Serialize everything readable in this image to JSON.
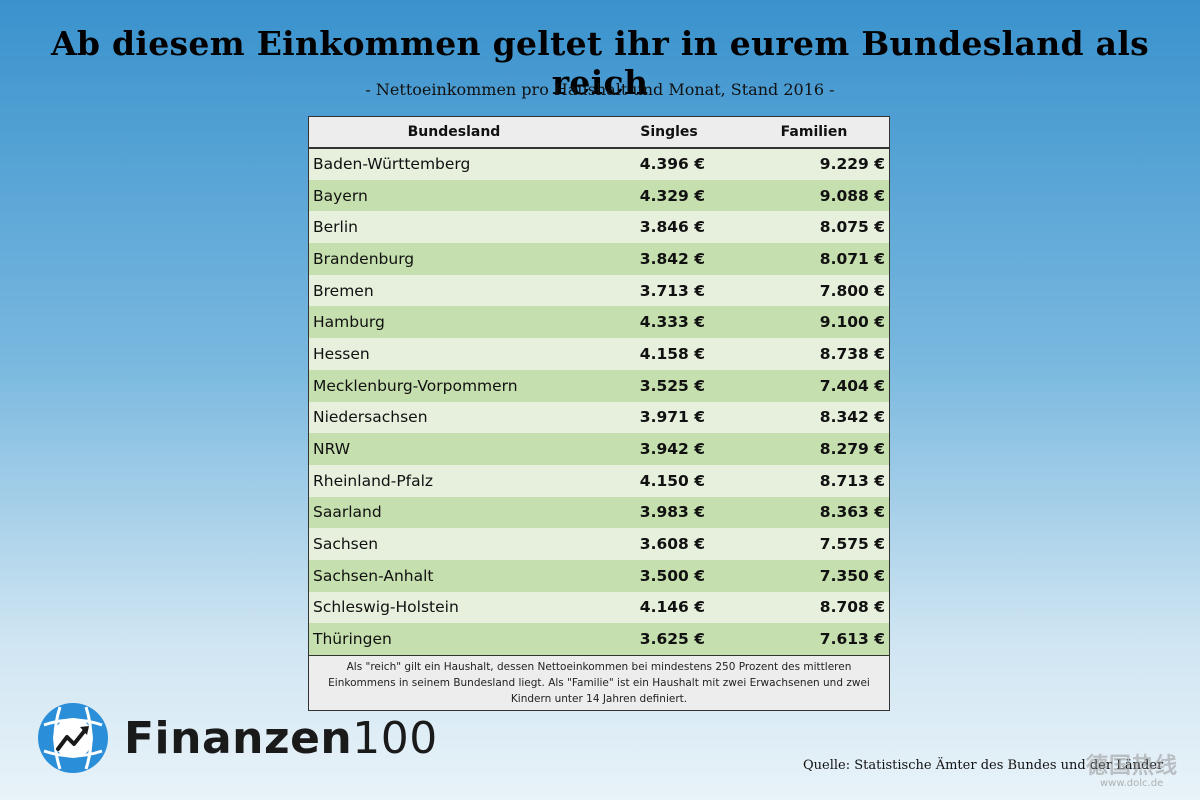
{
  "header": {
    "title": "Ab diesem Einkommen geltet ihr in eurem Bundesland als reich",
    "subtitle": "- Nettoeinkommen pro Haushalt und Monat, Stand 2016 -"
  },
  "chart_data": {
    "type": "table",
    "columns": [
      "Bundesland",
      "Singles",
      "Familien"
    ],
    "rows": [
      {
        "state": "Baden-Württemberg",
        "singles": "4.396 €",
        "families": "9.229 €"
      },
      {
        "state": "Bayern",
        "singles": "4.329 €",
        "families": "9.088 €"
      },
      {
        "state": "Berlin",
        "singles": "3.846 €",
        "families": "8.075 €"
      },
      {
        "state": "Brandenburg",
        "singles": "3.842 €",
        "families": "8.071 €"
      },
      {
        "state": "Bremen",
        "singles": "3.713 €",
        "families": "7.800 €"
      },
      {
        "state": "Hamburg",
        "singles": "4.333 €",
        "families": "9.100 €"
      },
      {
        "state": "Hessen",
        "singles": "4.158 €",
        "families": "8.738 €"
      },
      {
        "state": "Mecklenburg-Vorpommern",
        "singles": "3.525 €",
        "families": "7.404 €"
      },
      {
        "state": "Niedersachsen",
        "singles": "3.971 €",
        "families": "8.342 €"
      },
      {
        "state": "NRW",
        "singles": "3.942 €",
        "families": "8.279 €"
      },
      {
        "state": "Rheinland-Pfalz",
        "singles": "4.150 €",
        "families": "8.713 €"
      },
      {
        "state": "Saarland",
        "singles": "3.983 €",
        "families": "8.363 €"
      },
      {
        "state": "Sachsen",
        "singles": "3.608 €",
        "families": "7.575 €"
      },
      {
        "state": "Sachsen-Anhalt",
        "singles": "3.500 €",
        "families": "7.350 €"
      },
      {
        "state": "Schleswig-Holstein",
        "singles": "4.146 €",
        "families": "8.708 €"
      },
      {
        "state": "Thüringen",
        "singles": "3.625 €",
        "families": "7.613 €"
      }
    ],
    "footnote": "Als \"reich\" gilt ein Haushalt, dessen Nettoeinkommen bei mindestens 250 Prozent des mittleren Einkommens in seinem Bundesland liegt. Als \"Familie\" ist ein Haushalt mit zwei Erwachsenen und zwei Kindern unter 14 Jahren definiert."
  },
  "branding": {
    "logo_text_bold": "Finanzen",
    "logo_text_light": "100",
    "logo_icon": "chart-globe-icon",
    "logo_color": "#2a8fd8"
  },
  "source": "Quelle: Statistische Ämter des Bundes und der Länder",
  "watermark": {
    "text": "德国热线",
    "url": "www.dolc.de"
  }
}
